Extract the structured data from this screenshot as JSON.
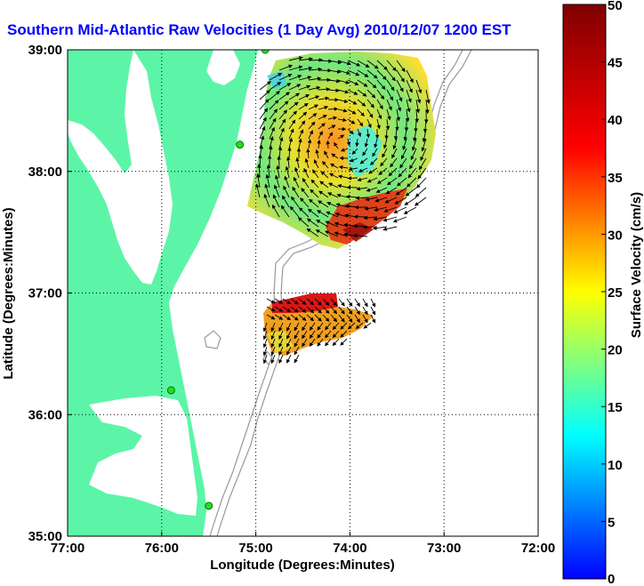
{
  "title": "Southern Mid-Atlantic Raw Velocities (1 Day Avg) 2010/12/07 1200 EST",
  "x_axis": {
    "label": "Longitude (Degrees:Minutes)",
    "ticks": [
      "77:00",
      "76:00",
      "75:00",
      "74:00",
      "73:00",
      "72:00"
    ]
  },
  "y_axis": {
    "label": "Latitude (Degrees:Minutes)",
    "ticks": [
      "39:00",
      "38:00",
      "37:00",
      "36:00",
      "35:00"
    ]
  },
  "colorbar": {
    "label": "Surface Velocity (cm/s)",
    "min": 0,
    "max": 50,
    "ticks": [
      "50",
      "45",
      "40",
      "35",
      "30",
      "25",
      "20",
      "15",
      "10",
      "5",
      "0"
    ]
  },
  "map_extent": {
    "lon": [
      -77,
      -72
    ],
    "lat": [
      35,
      39
    ]
  },
  "colors": {
    "land": "#5cf5a8",
    "water": "#ffffff",
    "title": "#0000ff",
    "site_marker": "#22dd22",
    "bathymetry": "#999999"
  },
  "radar_sites": [
    {
      "lon": -74.9,
      "lat": 39.0
    },
    {
      "lon": -75.17,
      "lat": 38.22
    },
    {
      "lon": -75.9,
      "lat": 36.2
    },
    {
      "lon": -75.5,
      "lat": 35.25
    }
  ]
}
